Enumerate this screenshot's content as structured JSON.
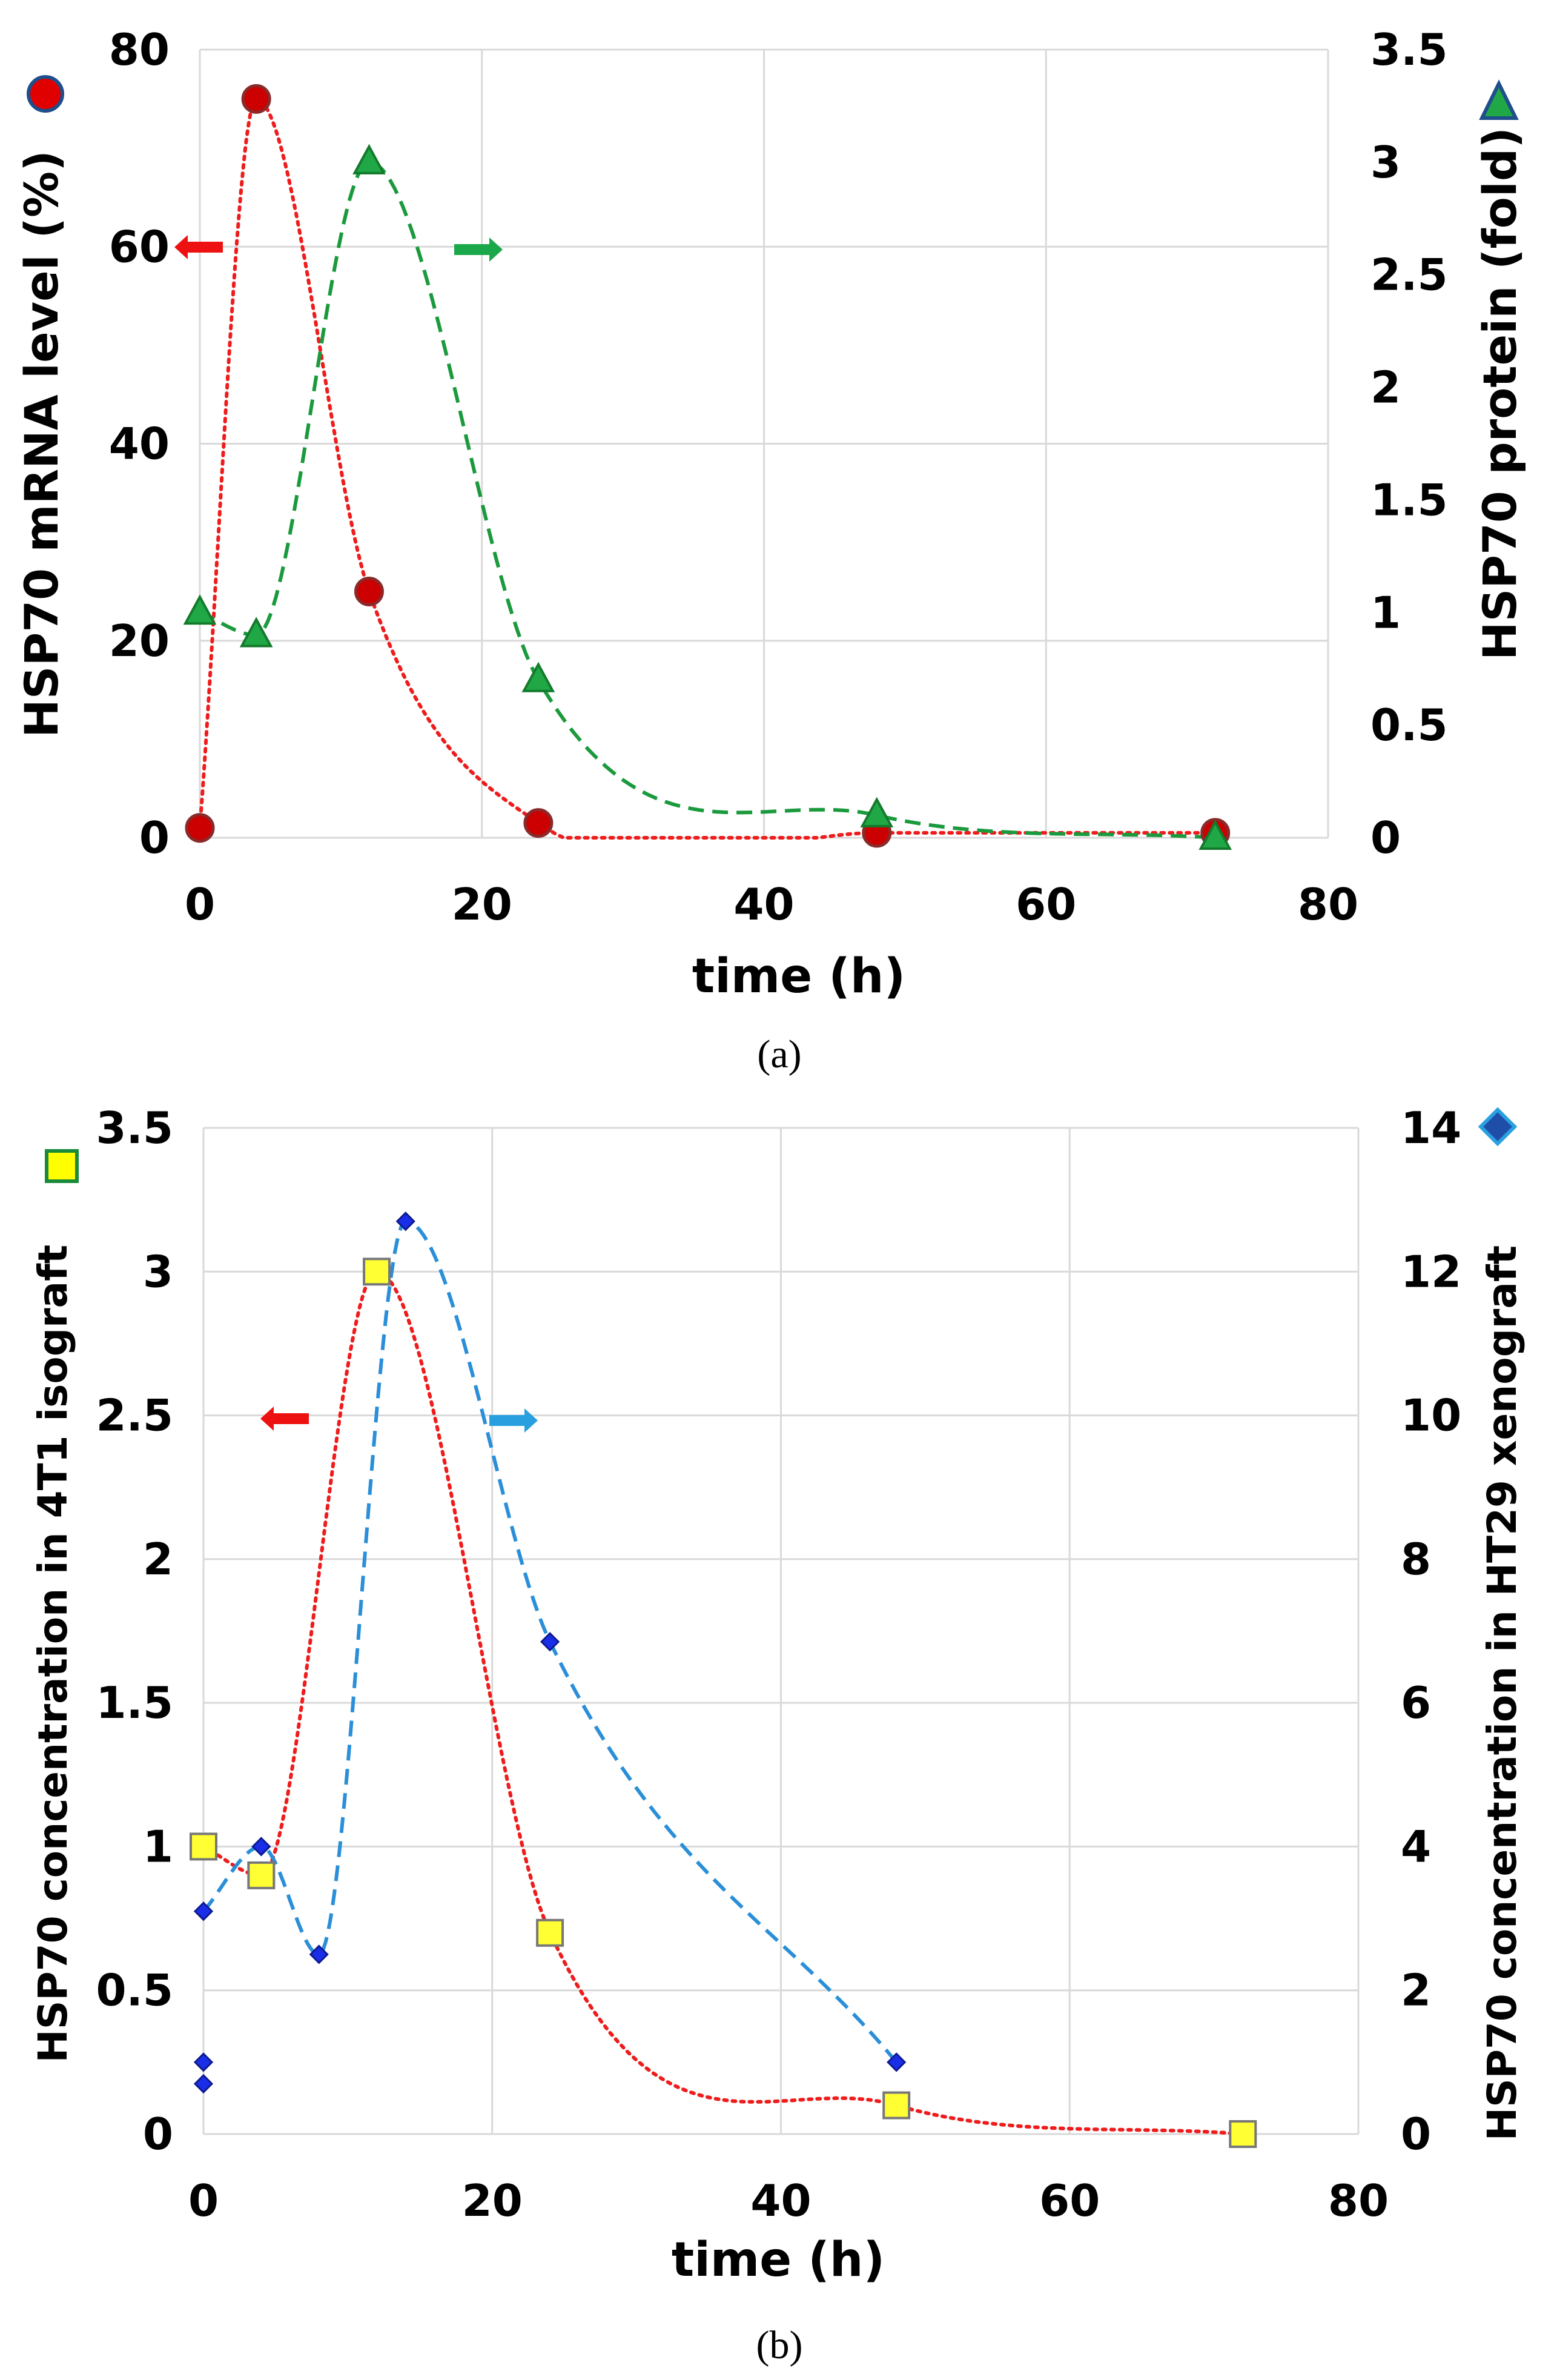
{
  "chart_data": [
    {
      "type": "scatter",
      "panel_label": "a",
      "xlabel": "time (h)",
      "x_ticks": [
        "0",
        "20",
        "40",
        "60",
        "80"
      ],
      "xlim": [
        0,
        80
      ],
      "ylabel_left": "HSP70 mRNA level (%)",
      "ylabel_right": "HSP70 protein (fold)",
      "ylim_left": [
        0,
        80
      ],
      "ylim_right": [
        0,
        3.5
      ],
      "y_ticks_left": [
        "0",
        "20",
        "40",
        "60",
        "80"
      ],
      "y_ticks_right": [
        "0",
        "0.5",
        "1",
        "1.5",
        "2",
        "2.5",
        "3",
        "3.5"
      ],
      "grid": true,
      "series": [
        {
          "name": "HSP70 mRNA level",
          "axis": "left",
          "marker": "circle",
          "marker_color": "#e00000",
          "line_style": "dotted",
          "line_color": "#ee1c1c",
          "x": [
            0,
            4,
            12,
            24,
            48,
            72
          ],
          "y": [
            1,
            75,
            25,
            1.5,
            0.5,
            0.5
          ]
        },
        {
          "name": "HSP70 protein",
          "axis": "right",
          "marker": "triangle",
          "marker_color": "#1fa845",
          "line_style": "dashed",
          "line_color": "#1a9a3c",
          "x": [
            0,
            4,
            12,
            24,
            48,
            72
          ],
          "y": [
            1.0,
            0.9,
            3.0,
            0.7,
            0.1,
            0.0
          ]
        }
      ],
      "arrows": [
        {
          "axis": "left",
          "direction": "left",
          "color": "#ee1111"
        },
        {
          "axis": "right",
          "direction": "right",
          "color": "#1aa84a"
        }
      ]
    },
    {
      "type": "scatter",
      "panel_label": "b",
      "xlabel": "time (h)",
      "x_ticks": [
        "0",
        "20",
        "40",
        "60",
        "80"
      ],
      "xlim": [
        0,
        80
      ],
      "ylabel_left": "HSP70 concentration in 4T1 isograft",
      "ylabel_right": "HSP70 concentration in HT29 xenograft",
      "ylim_left": [
        0,
        3.5
      ],
      "ylim_right": [
        0,
        14
      ],
      "y_ticks_left": [
        "0",
        "0.5",
        "1",
        "1.5",
        "2",
        "2.5",
        "3",
        "3.5"
      ],
      "y_ticks_right": [
        "0",
        "2",
        "4",
        "6",
        "8",
        "10",
        "12",
        "14"
      ],
      "grid": true,
      "series": [
        {
          "name": "HSP70 concentration in 4T1 isograft",
          "axis": "left",
          "marker": "square",
          "marker_color": "#ffff00",
          "line_style": "dotted",
          "line_color": "#ee1c1c",
          "x": [
            0,
            4,
            12,
            24,
            48,
            72
          ],
          "y": [
            1.0,
            0.9,
            3.0,
            0.7,
            0.1,
            0.0
          ]
        },
        {
          "name": "HSP70 concentration in HT29 xenograft",
          "axis": "right",
          "marker": "diamond",
          "marker_color": "#1a2ee8",
          "line_style": "dashed",
          "line_color": "#2a8fd8",
          "x": [
            0,
            0,
            0,
            4,
            8,
            14,
            24,
            48
          ],
          "y": [
            0.7,
            1.0,
            3.1,
            4.0,
            2.5,
            12.7,
            6.85,
            1.0
          ]
        }
      ],
      "arrows": [
        {
          "axis": "left",
          "direction": "left",
          "color": "#ee1111"
        },
        {
          "axis": "right",
          "direction": "right",
          "color": "#2a9fe0"
        }
      ]
    }
  ],
  "captions": [
    "(a)",
    "(b)"
  ]
}
